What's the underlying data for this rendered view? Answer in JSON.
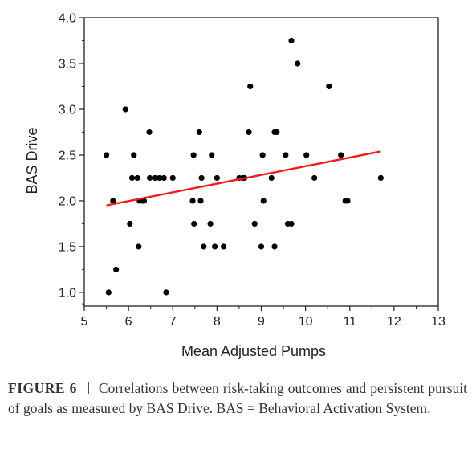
{
  "chart_data": {
    "type": "scatter",
    "xlabel": "Mean Adjusted Pumps",
    "ylabel": "BAS Drive",
    "xlim": [
      5,
      13
    ],
    "ylim": [
      0.85,
      4.0
    ],
    "x_ticks": [
      "5",
      "6",
      "7",
      "8",
      "9",
      "10",
      "11",
      "12",
      "13"
    ],
    "y_ticks": [
      "1.0",
      "1.5",
      "2.0",
      "2.5",
      "3.0",
      "3.5",
      "4.0"
    ],
    "grid": false,
    "legend": "none",
    "points": [
      [
        5.5,
        2.5
      ],
      [
        5.55,
        1.0
      ],
      [
        5.65,
        2.0
      ],
      [
        5.72,
        1.25
      ],
      [
        5.93,
        3.0
      ],
      [
        6.03,
        1.75
      ],
      [
        6.08,
        2.25
      ],
      [
        6.12,
        2.5
      ],
      [
        6.2,
        2.25
      ],
      [
        6.23,
        1.5
      ],
      [
        6.25,
        2.0
      ],
      [
        6.32,
        2.0
      ],
      [
        6.35,
        2.0
      ],
      [
        6.47,
        2.75
      ],
      [
        6.48,
        2.25
      ],
      [
        6.6,
        2.25
      ],
      [
        6.7,
        2.25
      ],
      [
        6.8,
        2.25
      ],
      [
        6.85,
        1.0
      ],
      [
        7.0,
        2.25
      ],
      [
        7.45,
        2.0
      ],
      [
        7.47,
        2.5
      ],
      [
        7.48,
        1.75
      ],
      [
        7.6,
        2.75
      ],
      [
        7.63,
        2.0
      ],
      [
        7.65,
        2.25
      ],
      [
        7.7,
        1.5
      ],
      [
        7.85,
        1.75
      ],
      [
        7.88,
        2.5
      ],
      [
        7.95,
        1.5
      ],
      [
        8.0,
        2.25
      ],
      [
        8.15,
        1.5
      ],
      [
        8.5,
        2.25
      ],
      [
        8.58,
        2.25
      ],
      [
        8.62,
        2.25
      ],
      [
        8.72,
        2.75
      ],
      [
        8.75,
        3.25
      ],
      [
        8.85,
        1.75
      ],
      [
        9.0,
        1.5
      ],
      [
        9.03,
        2.5
      ],
      [
        9.05,
        2.0
      ],
      [
        9.23,
        2.25
      ],
      [
        9.3,
        1.5
      ],
      [
        9.3,
        2.75
      ],
      [
        9.35,
        2.75
      ],
      [
        9.55,
        2.5
      ],
      [
        9.6,
        1.75
      ],
      [
        9.68,
        1.75
      ],
      [
        9.68,
        3.75
      ],
      [
        9.82,
        3.5
      ],
      [
        10.02,
        2.5
      ],
      [
        10.2,
        2.25
      ],
      [
        10.53,
        3.25
      ],
      [
        10.8,
        2.5
      ],
      [
        10.9,
        2.0
      ],
      [
        10.95,
        2.0
      ],
      [
        11.7,
        2.25
      ]
    ],
    "trendline": {
      "x": [
        5.5,
        11.7
      ],
      "y": [
        1.95,
        2.54
      ]
    },
    "colors": {
      "points": "#000000",
      "trendline": "#ee1c1c",
      "axes": "#222222"
    }
  },
  "caption": {
    "label": "FIGURE 6",
    "text": "Correlations between risk-taking outcomes and persistent pursuit of goals as measured by BAS Drive. BAS = Behavioral Activation System."
  }
}
